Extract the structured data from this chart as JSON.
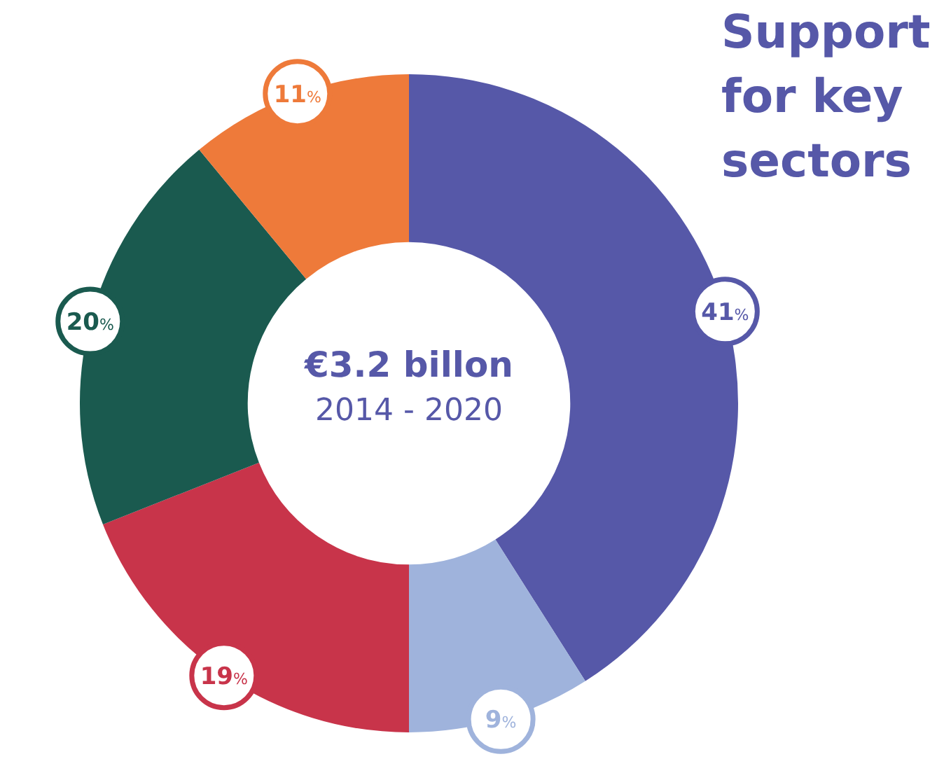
{
  "chart_data": {
    "type": "donut",
    "title": "Support for key sectors",
    "categories": [
      null,
      null,
      null,
      null,
      null
    ],
    "values": [
      41,
      9,
      19,
      20,
      11
    ],
    "colors": [
      "#5658a8",
      "#9fb3dc",
      "#c8344a",
      "#1a5a4f",
      "#ee7a3a"
    ],
    "value_labels": [
      "41%",
      "9%",
      "19%",
      "20%",
      "11%"
    ],
    "annotations": [
      "€3.2 billon",
      "2014 - 2020"
    ],
    "legend": false
  }
}
